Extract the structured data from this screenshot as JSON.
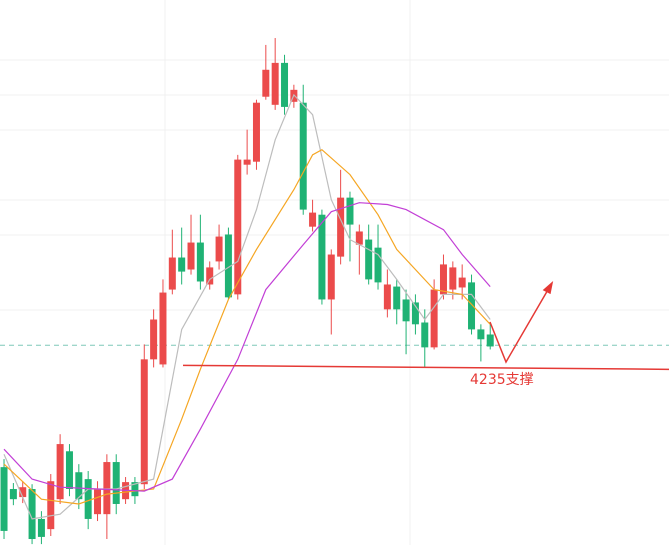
{
  "chart_data": {
    "type": "candlestick",
    "ylim": [
      4175,
      4357
    ],
    "xlim": [
      -0.43,
      71.12
    ],
    "up_color": "#eb4b4b",
    "down_color": "#1fb274",
    "open": [
      4201,
      4193.7,
      4191,
      4193.7,
      4183.7,
      4180.3,
      4190.3,
      4206.3,
      4199.3,
      4197,
      4185.3,
      4185.3,
      4202.7,
      4190.3,
      4196,
      4195.3,
      4237,
      4235.3,
      4260.3,
      4271,
      4267,
      4276,
      4262,
      4269.7,
      4278.7,
      4258.7,
      4302,
      4303,
      4324.7,
      4322,
      4336,
      4323,
      4322.7,
      4281.3,
      4285.3,
      4257,
      4271.3,
      4291,
      4275.3,
      4277,
      4274.3,
      4253.7,
      4261.3,
      4257,
      4256,
      4249.3,
      4241,
      4258.7,
      4260.3,
      4261,
      4262.7,
      4247,
      4245.3
    ],
    "high": [
      4203.7,
      4195.7,
      4196.3,
      4195.3,
      4186.3,
      4198.7,
      4212,
      4208.7,
      4202,
      4199.7,
      4196.3,
      4205.3,
      4205.3,
      4197.7,
      4197.7,
      4242,
      4253.7,
      4263.7,
      4280.3,
      4281,
      4285.3,
      4285.3,
      4269.7,
      4282,
      4281,
      4305.3,
      4313.7,
      4323.7,
      4342,
      4344.3,
      4338.7,
      4328.7,
      4328.7,
      4290.3,
      4287,
      4273.7,
      4300.3,
      4293,
      4282,
      4282,
      4282,
      4267,
      4263.7,
      4260.3,
      4258.7,
      4253.7,
      4263.7,
      4272,
      4269.7,
      4268.7,
      4265.3,
      4248.7,
      4248.7
    ],
    "low": [
      4177,
      4188.3,
      4189,
      4175.3,
      4175.3,
      4178,
      4188.7,
      4191.3,
      4187,
      4180.3,
      4183,
      4177,
      4185.3,
      4188.7,
      4188.7,
      4193.7,
      4234.3,
      4234.3,
      4258.7,
      4262,
      4265.3,
      4260.3,
      4260.3,
      4267,
      4257,
      4257,
      4298.7,
      4300.3,
      4323.7,
      4320.3,
      4318.7,
      4321,
      4285.3,
      4279.7,
      4255.3,
      4245.3,
      4268.7,
      4269.7,
      4265.3,
      4262,
      4260.3,
      4251,
      4248.7,
      4238.7,
      4245.3,
      4234.3,
      4240.3,
      4257,
      4257,
      4257,
      4245.3,
      4236.3,
      4240.3
    ],
    "close": [
      4179.7,
      4190.3,
      4194.3,
      4177,
      4177.7,
      4196.3,
      4208.7,
      4193.7,
      4190.3,
      4183.7,
      4193.7,
      4202.7,
      4188.7,
      4196,
      4191.3,
      4237,
      4250.3,
      4259.3,
      4271,
      4266.3,
      4276,
      4263,
      4267.7,
      4278,
      4257.7,
      4303.7,
      4303.7,
      4322.7,
      4333.7,
      4336,
      4321.3,
      4327,
      4287,
      4286,
      4257,
      4272,
      4291,
      4282,
      4279.7,
      4263.7,
      4262.7,
      4262,
      4253.7,
      4249.7,
      4248.7,
      4241,
      4260.3,
      4268.7,
      4267.7,
      4264.3,
      4247,
      4243.7,
      4241.3
    ],
    "lines": [
      {
        "color": "#bdbdbd",
        "x": [
          0,
          3,
          6,
          9,
          12,
          16,
          17,
          19,
          22,
          25,
          27,
          29,
          31,
          33,
          35,
          37,
          40,
          42,
          45,
          47,
          50,
          52
        ],
        "values": [
          4205.3,
          4183.7,
          4185.3,
          4193.7,
          4193.7,
          4197,
          4213.7,
          4247,
          4263.7,
          4269.7,
          4287,
          4310.3,
          4325.3,
          4318.7,
          4290.3,
          4277,
          4272,
          4263.7,
          4250.3,
          4258.7,
          4258.7,
          4250.3
        ]
      },
      {
        "color": "#f5a623",
        "x": [
          0,
          4,
          8,
          11,
          16,
          19,
          21,
          24,
          27,
          31,
          33,
          34,
          37,
          40,
          42,
          46,
          49,
          52
        ],
        "values": [
          4202,
          4190.3,
          4188.7,
          4192,
          4193.7,
          4217,
          4233.7,
          4257,
          4273.7,
          4293.7,
          4305.3,
          4307,
          4298.7,
          4285.3,
          4273.7,
          4260.3,
          4258.7,
          4248.7
        ]
      },
      {
        "color": "#c23fd6",
        "x": [
          0,
          3,
          6,
          10,
          15,
          18,
          21,
          25,
          28,
          32,
          35,
          38,
          41,
          43,
          47,
          49,
          52
        ],
        "values": [
          4207,
          4197,
          4194.3,
          4193.7,
          4193,
          4197,
          4213.7,
          4237,
          4260.3,
          4275.3,
          4286.3,
          4289.3,
          4288.7,
          4287,
          4280.3,
          4272,
          4261.3
        ]
      }
    ],
    "price_line": {
      "value": 4241.7,
      "color": "#7fc8b8"
    },
    "support": {
      "label": "4235支撑",
      "value": 4235,
      "color": "#e53935"
    }
  }
}
